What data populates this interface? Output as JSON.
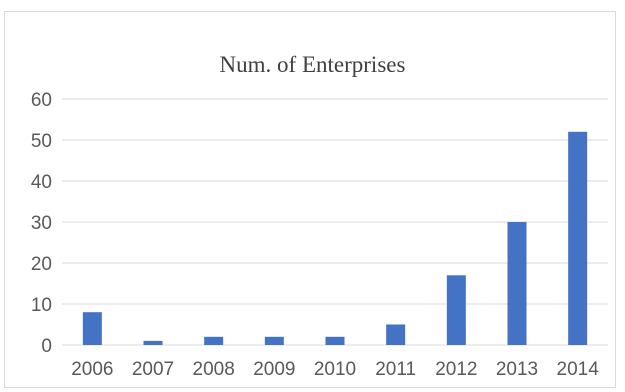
{
  "chart_data": {
    "type": "bar",
    "title": "Num. of Enterprises",
    "categories": [
      "2006",
      "2007",
      "2008",
      "2009",
      "2010",
      "2011",
      "2012",
      "2013",
      "2014"
    ],
    "values": [
      8,
      1,
      2,
      2,
      2,
      5,
      17,
      30,
      52
    ],
    "ylim": [
      0,
      60
    ],
    "yticks": [
      0,
      10,
      20,
      30,
      40,
      50,
      60
    ],
    "xlabel": "",
    "ylabel": "",
    "grid": true,
    "legend": "none",
    "bar_color": "#4472c4",
    "grid_color": "#d9d9d9"
  }
}
